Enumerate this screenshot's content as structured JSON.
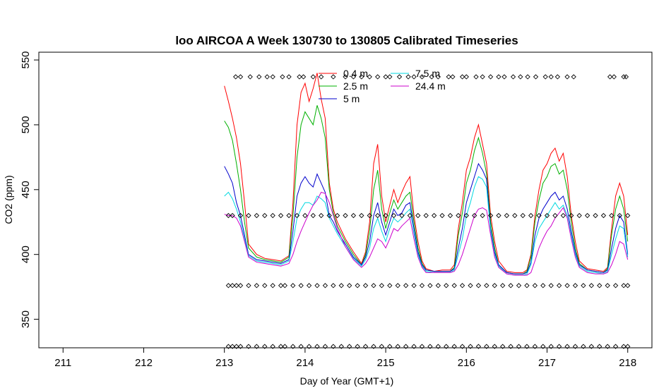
{
  "chart_data": {
    "type": "line",
    "title": "loo AIRCOA A  Week 130730 to 130805  Calibrated Timeseries",
    "xlabel": "Day of Year (GMT+1)",
    "ylabel": "CO2 (ppm)",
    "xlim": [
      210.7,
      218.3
    ],
    "ylim": [
      328,
      556
    ],
    "xticks": [
      211,
      212,
      213,
      214,
      215,
      216,
      217,
      218
    ],
    "yticks": [
      350,
      400,
      450,
      500,
      550
    ],
    "grid": false,
    "legend_position": "top-center",
    "series": [
      {
        "name": "0.4 m",
        "color": "#ff0000",
        "x": [
          213.0,
          213.05,
          213.1,
          213.15,
          213.2,
          213.25,
          213.3,
          213.4,
          213.5,
          213.6,
          213.7,
          213.8,
          213.85,
          213.9,
          213.95,
          214.0,
          214.05,
          214.1,
          214.15,
          214.2,
          214.25,
          214.3,
          214.35,
          214.4,
          214.5,
          214.6,
          214.7,
          214.75,
          214.8,
          214.85,
          214.9,
          214.95,
          215.0,
          215.05,
          215.1,
          215.15,
          215.2,
          215.25,
          215.3,
          215.35,
          215.4,
          215.45,
          215.5,
          215.6,
          215.7,
          215.8,
          215.85,
          215.9,
          215.95,
          216.0,
          216.05,
          216.1,
          216.15,
          216.2,
          216.25,
          216.3,
          216.35,
          216.4,
          216.5,
          216.6,
          216.7,
          216.75,
          216.8,
          216.85,
          216.9,
          216.95,
          217.0,
          217.05,
          217.1,
          217.15,
          217.2,
          217.25,
          217.3,
          217.35,
          217.4,
          217.5,
          217.6,
          217.7,
          217.75,
          217.8,
          217.85,
          217.9,
          217.95,
          218.0
        ],
        "y": [
          530,
          518,
          505,
          490,
          470,
          440,
          408,
          400,
          397,
          396,
          395,
          399,
          440,
          500,
          525,
          532,
          518,
          528,
          540,
          520,
          505,
          455,
          435,
          425,
          412,
          402,
          393,
          402,
          425,
          470,
          485,
          445,
          425,
          438,
          450,
          440,
          448,
          455,
          460,
          430,
          410,
          395,
          389,
          387,
          388,
          388,
          392,
          420,
          440,
          465,
          475,
          490,
          500,
          485,
          470,
          430,
          410,
          395,
          387,
          386,
          386,
          388,
          400,
          430,
          450,
          465,
          470,
          478,
          482,
          472,
          478,
          460,
          430,
          410,
          395,
          389,
          388,
          387,
          390,
          420,
          445,
          455,
          445,
          415
        ]
      },
      {
        "name": "2.5 m",
        "color": "#00b000",
        "x": [
          213.0,
          213.05,
          213.1,
          213.15,
          213.2,
          213.25,
          213.3,
          213.4,
          213.5,
          213.6,
          213.7,
          213.8,
          213.85,
          213.9,
          213.95,
          214.0,
          214.05,
          214.1,
          214.15,
          214.2,
          214.25,
          214.3,
          214.35,
          214.4,
          214.5,
          214.6,
          214.7,
          214.75,
          214.8,
          214.85,
          214.9,
          214.95,
          215.0,
          215.05,
          215.1,
          215.15,
          215.2,
          215.25,
          215.3,
          215.35,
          215.4,
          215.45,
          215.5,
          215.6,
          215.7,
          215.8,
          215.85,
          215.9,
          215.95,
          216.0,
          216.05,
          216.1,
          216.15,
          216.2,
          216.25,
          216.3,
          216.35,
          216.4,
          216.5,
          216.6,
          216.7,
          216.75,
          216.8,
          216.85,
          216.9,
          216.95,
          217.0,
          217.05,
          217.1,
          217.15,
          217.2,
          217.25,
          217.3,
          217.35,
          217.4,
          217.5,
          217.6,
          217.7,
          217.75,
          217.8,
          217.85,
          217.9,
          217.95,
          218.0
        ],
        "y": [
          503,
          498,
          488,
          470,
          450,
          425,
          405,
          398,
          396,
          395,
          394,
          398,
          430,
          475,
          500,
          510,
          505,
          500,
          515,
          505,
          490,
          450,
          432,
          422,
          410,
          400,
          392,
          400,
          418,
          450,
          465,
          435,
          420,
          432,
          442,
          435,
          440,
          445,
          448,
          425,
          405,
          393,
          388,
          387,
          387,
          387,
          390,
          415,
          432,
          455,
          465,
          480,
          490,
          478,
          462,
          425,
          405,
          392,
          386,
          385,
          385,
          387,
          398,
          425,
          442,
          455,
          460,
          468,
          470,
          462,
          465,
          450,
          425,
          405,
          393,
          388,
          387,
          386,
          389,
          415,
          435,
          445,
          435,
          410
        ]
      },
      {
        "name": "5 m",
        "color": "#0000cc",
        "x": [
          213.0,
          213.05,
          213.1,
          213.15,
          213.2,
          213.25,
          213.3,
          213.4,
          213.5,
          213.6,
          213.7,
          213.8,
          213.85,
          213.9,
          213.95,
          214.0,
          214.05,
          214.1,
          214.15,
          214.2,
          214.25,
          214.3,
          214.35,
          214.4,
          214.5,
          214.6,
          214.7,
          214.75,
          214.8,
          214.85,
          214.9,
          214.95,
          215.0,
          215.05,
          215.1,
          215.15,
          215.2,
          215.25,
          215.3,
          215.35,
          215.4,
          215.45,
          215.5,
          215.6,
          215.7,
          215.8,
          215.85,
          215.9,
          215.95,
          216.0,
          216.05,
          216.1,
          216.15,
          216.2,
          216.25,
          216.3,
          216.35,
          216.4,
          216.5,
          216.6,
          216.7,
          216.75,
          216.8,
          216.85,
          216.9,
          216.95,
          217.0,
          217.05,
          217.1,
          217.15,
          217.2,
          217.25,
          217.3,
          217.35,
          217.4,
          217.5,
          217.6,
          217.7,
          217.75,
          217.8,
          217.85,
          217.9,
          217.95,
          218.0
        ],
        "y": [
          468,
          462,
          455,
          440,
          430,
          415,
          400,
          396,
          395,
          394,
          393,
          396,
          418,
          445,
          455,
          460,
          455,
          452,
          462,
          455,
          448,
          430,
          425,
          418,
          408,
          398,
          392,
          398,
          410,
          430,
          440,
          425,
          415,
          425,
          435,
          430,
          432,
          438,
          440,
          420,
          402,
          392,
          388,
          387,
          387,
          387,
          389,
          405,
          420,
          440,
          450,
          460,
          470,
          465,
          458,
          420,
          402,
          392,
          386,
          385,
          385,
          386,
          394,
          415,
          428,
          435,
          440,
          445,
          448,
          442,
          445,
          435,
          418,
          402,
          392,
          388,
          387,
          386,
          388,
          405,
          420,
          430,
          425,
          400
        ]
      },
      {
        "name": "7.5 m",
        "color": "#00d8e0",
        "x": [
          213.0,
          213.05,
          213.1,
          213.15,
          213.2,
          213.25,
          213.3,
          213.4,
          213.5,
          213.6,
          213.7,
          213.8,
          213.85,
          213.9,
          213.95,
          214.0,
          214.05,
          214.1,
          214.15,
          214.2,
          214.25,
          214.3,
          214.35,
          214.4,
          214.5,
          214.6,
          214.7,
          214.75,
          214.8,
          214.85,
          214.9,
          214.95,
          215.0,
          215.05,
          215.1,
          215.15,
          215.2,
          215.25,
          215.3,
          215.35,
          215.4,
          215.45,
          215.5,
          215.6,
          215.7,
          215.8,
          215.85,
          215.9,
          215.95,
          216.0,
          216.05,
          216.1,
          216.15,
          216.2,
          216.25,
          216.3,
          216.35,
          216.4,
          216.5,
          216.6,
          216.7,
          216.75,
          216.8,
          216.85,
          216.9,
          216.95,
          217.0,
          217.05,
          217.1,
          217.15,
          217.2,
          217.25,
          217.3,
          217.35,
          217.4,
          217.5,
          217.6,
          217.7,
          217.75,
          217.8,
          217.85,
          217.9,
          217.95,
          218.0
        ],
        "y": [
          445,
          448,
          443,
          435,
          425,
          412,
          399,
          395,
          394,
          393,
          392,
          395,
          410,
          428,
          435,
          440,
          440,
          438,
          445,
          443,
          440,
          428,
          422,
          416,
          406,
          397,
          391,
          396,
          405,
          420,
          428,
          418,
          410,
          420,
          428,
          425,
          428,
          432,
          435,
          416,
          400,
          391,
          387,
          386,
          386,
          386,
          388,
          400,
          412,
          430,
          440,
          452,
          460,
          458,
          452,
          418,
          400,
          391,
          385,
          384,
          384,
          385,
          392,
          410,
          420,
          425,
          430,
          435,
          440,
          435,
          438,
          430,
          415,
          400,
          391,
          387,
          386,
          385,
          387,
          400,
          412,
          422,
          420,
          398
        ]
      },
      {
        "name": "24.4 m",
        "color": "#cc00cc",
        "x": [
          213.0,
          213.05,
          213.1,
          213.15,
          213.2,
          213.25,
          213.3,
          213.4,
          213.5,
          213.6,
          213.7,
          213.8,
          213.85,
          213.9,
          213.95,
          214.0,
          214.05,
          214.1,
          214.15,
          214.2,
          214.25,
          214.3,
          214.35,
          214.4,
          214.5,
          214.6,
          214.7,
          214.75,
          214.8,
          214.85,
          214.9,
          214.95,
          215.0,
          215.05,
          215.1,
          215.15,
          215.2,
          215.25,
          215.3,
          215.35,
          215.4,
          215.45,
          215.5,
          215.6,
          215.7,
          215.8,
          215.85,
          215.9,
          215.95,
          216.0,
          216.05,
          216.1,
          216.15,
          216.2,
          216.25,
          216.3,
          216.35,
          216.4,
          216.5,
          216.6,
          216.7,
          216.75,
          216.8,
          216.85,
          216.9,
          216.95,
          217.0,
          217.05,
          217.1,
          217.15,
          217.2,
          217.25,
          217.3,
          217.35,
          217.4,
          217.5,
          217.6,
          217.7,
          217.75,
          217.8,
          217.85,
          217.9,
          217.95,
          218.0
        ],
        "y": [
          431,
          430,
          430,
          428,
          422,
          410,
          398,
          394,
          393,
          392,
          391,
          393,
          400,
          410,
          418,
          425,
          432,
          438,
          442,
          448,
          447,
          440,
          430,
          420,
          406,
          396,
          390,
          393,
          398,
          405,
          412,
          410,
          405,
          412,
          420,
          418,
          422,
          425,
          428,
          412,
          398,
          390,
          386,
          386,
          386,
          386,
          387,
          392,
          400,
          410,
          420,
          430,
          435,
          436,
          434,
          415,
          398,
          390,
          385,
          384,
          384,
          384,
          386,
          395,
          405,
          412,
          418,
          422,
          428,
          432,
          436,
          428,
          412,
          398,
          390,
          386,
          385,
          385,
          386,
          392,
          400,
          410,
          408,
          396
        ]
      }
    ],
    "marker_rows": [
      {
        "y": 537,
        "x": [
          213.14,
          213.2,
          213.32,
          213.43,
          213.53,
          213.6,
          213.72,
          213.8,
          213.93,
          213.98,
          214.1,
          214.2,
          214.35,
          214.5,
          214.6,
          214.7,
          214.8,
          214.9,
          215.0,
          215.05,
          215.17,
          215.28,
          215.35,
          215.45,
          215.57,
          215.65,
          215.78,
          215.83,
          215.95,
          216.0,
          216.12,
          216.2,
          216.3,
          216.4,
          216.47,
          216.58,
          216.67,
          216.76,
          216.86,
          216.98,
          217.05,
          217.13,
          217.25,
          217.33,
          217.78,
          217.83,
          217.95,
          217.98
        ]
      },
      {
        "y": 430,
        "x": [
          213.05,
          213.1,
          213.2,
          213.3,
          213.4,
          213.5,
          213.6,
          213.7,
          213.8,
          213.9,
          214.0,
          214.1,
          214.2,
          214.3,
          214.4,
          214.5,
          214.6,
          214.7,
          214.8,
          214.9,
          215.0,
          215.1,
          215.2,
          215.3,
          215.4,
          215.5,
          215.6,
          215.7,
          215.8,
          215.9,
          216.0,
          216.1,
          216.2,
          216.3,
          216.4,
          216.5,
          216.6,
          216.7,
          216.8,
          216.9,
          217.0,
          217.1,
          217.2,
          217.3,
          217.4,
          217.5,
          217.6,
          217.7,
          217.8,
          217.9,
          218.0
        ]
      },
      {
        "y": 376,
        "x": [
          213.05,
          213.1,
          213.15,
          213.2,
          213.3,
          213.4,
          213.5,
          213.6,
          213.7,
          213.75,
          213.85,
          213.95,
          214.05,
          214.15,
          214.25,
          214.35,
          214.45,
          214.55,
          214.65,
          214.75,
          214.85,
          214.95,
          215.05,
          215.15,
          215.25,
          215.35,
          215.45,
          215.55,
          215.65,
          215.75,
          215.85,
          215.95,
          216.05,
          216.15,
          216.25,
          216.35,
          216.45,
          216.55,
          216.65,
          216.75,
          216.85,
          216.95,
          217.05,
          217.15,
          217.25,
          217.35,
          217.45,
          217.55,
          217.65,
          217.75,
          217.85,
          217.95,
          218.0
        ]
      },
      {
        "y": 329,
        "x": [
          213.05,
          213.1,
          213.15,
          213.2,
          213.3,
          213.4,
          213.5,
          213.6,
          213.7,
          213.75,
          213.85,
          213.95,
          214.05,
          214.15,
          214.25,
          214.35,
          214.45,
          214.55,
          214.65,
          214.75,
          214.85,
          214.95,
          215.05,
          215.15,
          215.25,
          215.35,
          215.45,
          215.55,
          215.65,
          215.75,
          215.85,
          215.95,
          216.05,
          216.15,
          216.25,
          216.35,
          216.45,
          216.55,
          216.65,
          216.75,
          216.85,
          216.95,
          217.05,
          217.15,
          217.25,
          217.35,
          217.45,
          217.55,
          217.65,
          217.75,
          217.85,
          217.95,
          218.0
        ]
      }
    ]
  }
}
